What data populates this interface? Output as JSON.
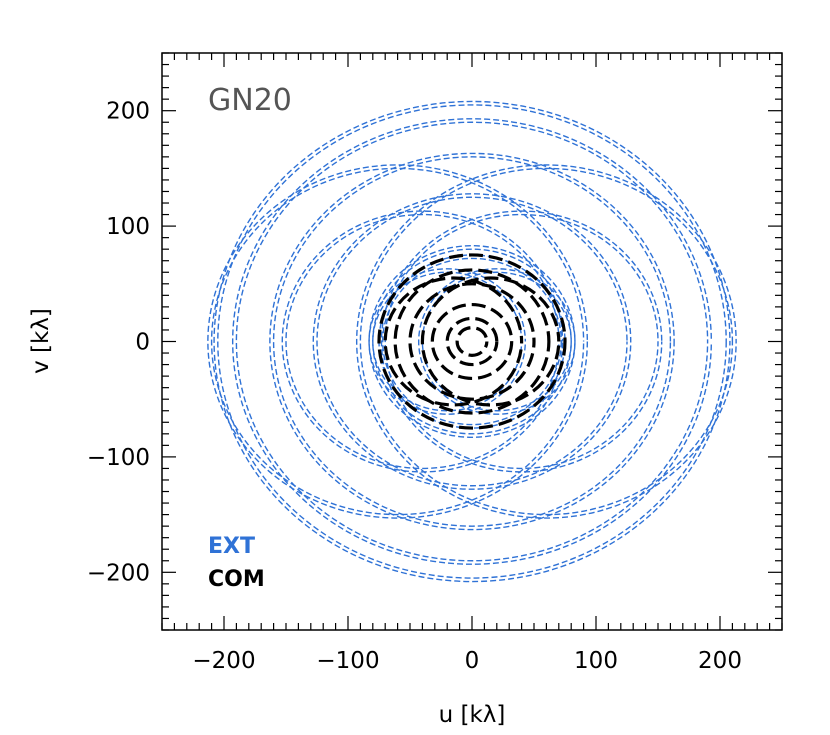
{
  "chart_data": {
    "type": "scatter",
    "title": "GN20",
    "xlabel": "u [kλ]",
    "ylabel": "v [kλ]",
    "xlim": [
      -250,
      250
    ],
    "ylim": [
      -250,
      250
    ],
    "x_ticks": [
      -200,
      -100,
      0,
      100,
      200
    ],
    "y_ticks": [
      -200,
      -100,
      0,
      100,
      200
    ],
    "x_tick_labels": [
      "−200",
      "−100",
      "0",
      "100",
      "200"
    ],
    "y_tick_labels": [
      "−200",
      "−100",
      "0",
      "100",
      "200"
    ],
    "grid": false,
    "legend_position": "bottom-left",
    "series": [
      {
        "name": "EXT",
        "color": "#2f72d6",
        "tracks": [
          {
            "cx": 0,
            "cy": 0,
            "r": 205
          },
          {
            "cx": 0,
            "cy": 0,
            "r": 190
          },
          {
            "cx": 0,
            "cy": 0,
            "r": 160
          },
          {
            "cx": 0,
            "cy": 0,
            "r": 125
          },
          {
            "cx": -60,
            "cy": 0,
            "r": 150
          },
          {
            "cx": 60,
            "cy": 0,
            "r": 150
          },
          {
            "cx": -40,
            "cy": 0,
            "r": 110
          },
          {
            "cx": 40,
            "cy": 0,
            "r": 110
          },
          {
            "cx": 0,
            "cy": 0,
            "r": 80
          },
          {
            "cx": 0,
            "cy": 0,
            "r": 72
          },
          {
            "cx": -20,
            "cy": 0,
            "r": 60
          },
          {
            "cx": 20,
            "cy": 0,
            "r": 60
          }
        ]
      },
      {
        "name": "COM",
        "color": "#000000",
        "tracks": [
          {
            "cx": 0,
            "cy": 0,
            "r": 75
          },
          {
            "cx": 0,
            "cy": 0,
            "r": 62
          },
          {
            "cx": 0,
            "cy": 0,
            "r": 50
          },
          {
            "cx": -15,
            "cy": 0,
            "r": 55
          },
          {
            "cx": 15,
            "cy": 0,
            "r": 55
          },
          {
            "cx": 0,
            "cy": 0,
            "r": 32
          },
          {
            "cx": 0,
            "cy": 0,
            "r": 20
          },
          {
            "cx": 0,
            "cy": 0,
            "r": 12
          }
        ]
      }
    ]
  }
}
